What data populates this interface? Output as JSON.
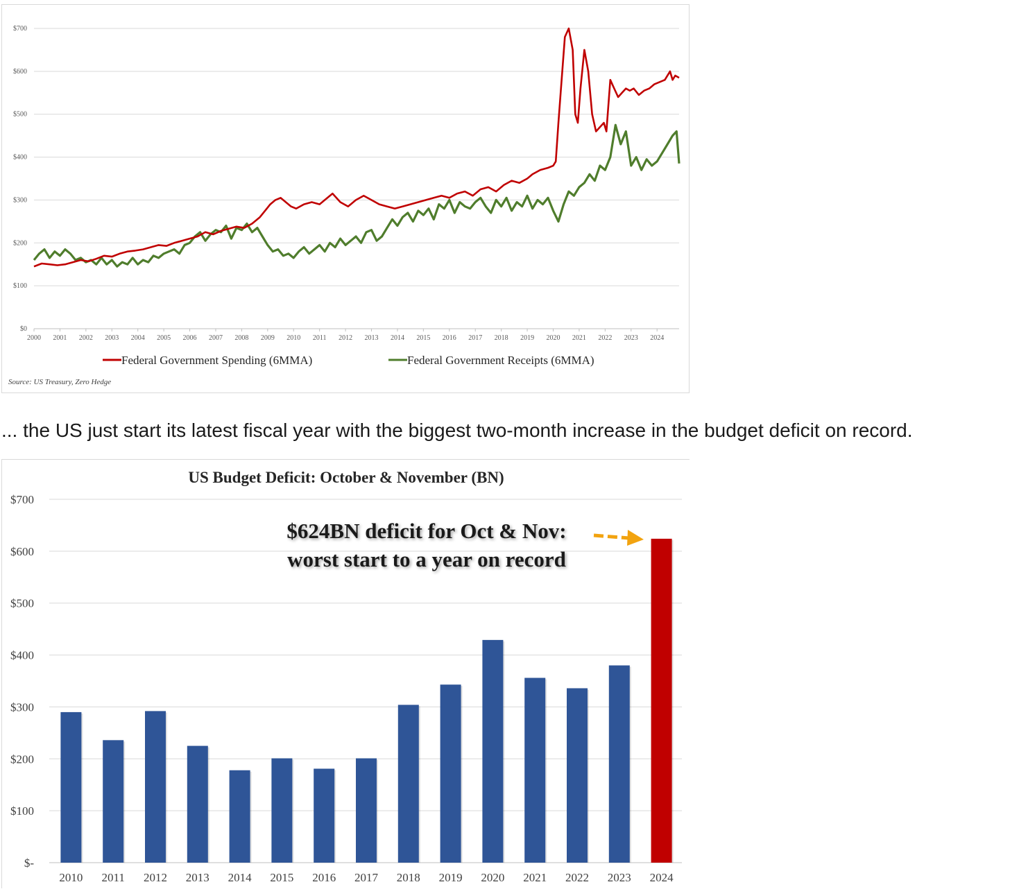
{
  "colors": {
    "spending": "#c00000",
    "receipts": "#4f7d2c",
    "bar": "#2f5597",
    "bar_highlight": "#c00000",
    "arrow": "#f2a30f"
  },
  "prose_text": "... the US just start its latest fiscal year with the biggest two-month increase in the budget deficit on record.",
  "chart_data": [
    {
      "type": "line",
      "title": "",
      "xlabel": "",
      "ylabel": "",
      "ylim": [
        0,
        700
      ],
      "xlim": [
        2000,
        2024.85
      ],
      "y_ticks": [
        0,
        100,
        200,
        300,
        400,
        500,
        600,
        700
      ],
      "y_tick_labels": [
        "$0",
        "$100",
        "$200",
        "$300",
        "$400",
        "$500",
        "$600",
        "$700"
      ],
      "x_tick_labels": [
        "2000",
        "2001",
        "2002",
        "2003",
        "2004",
        "2005",
        "2006",
        "2007",
        "2008",
        "2009",
        "2010",
        "2011",
        "2012",
        "2013",
        "2014",
        "2015",
        "2016",
        "2017",
        "2018",
        "2019",
        "2020",
        "2021",
        "2022",
        "2023",
        "2024"
      ],
      "grid": true,
      "legend": "bottom",
      "source": "Source: US Treasury, Zero Hedge",
      "series": [
        {
          "name": "Federal Government Spending (6MMA)",
          "color": "#c00000",
          "x": [
            2000.0,
            2000.3,
            2000.6,
            2000.9,
            2001.2,
            2001.5,
            2001.8,
            2002.1,
            2002.4,
            2002.7,
            2003.0,
            2003.3,
            2003.6,
            2003.9,
            2004.2,
            2004.5,
            2004.8,
            2005.1,
            2005.4,
            2005.7,
            2006.0,
            2006.3,
            2006.6,
            2006.9,
            2007.2,
            2007.5,
            2007.8,
            2008.1,
            2008.4,
            2008.7,
            2008.9,
            2009.1,
            2009.3,
            2009.5,
            2009.7,
            2009.9,
            2010.1,
            2010.4,
            2010.7,
            2011.0,
            2011.2,
            2011.5,
            2011.8,
            2012.1,
            2012.4,
            2012.7,
            2013.0,
            2013.3,
            2013.6,
            2013.9,
            2014.2,
            2014.5,
            2014.8,
            2015.1,
            2015.4,
            2015.7,
            2016.0,
            2016.3,
            2016.6,
            2016.9,
            2017.2,
            2017.5,
            2017.8,
            2018.1,
            2018.4,
            2018.7,
            2019.0,
            2019.2,
            2019.5,
            2019.8,
            2020.0,
            2020.1,
            2020.2,
            2020.3,
            2020.45,
            2020.6,
            2020.75,
            2020.85,
            2020.95,
            2021.05,
            2021.2,
            2021.35,
            2021.5,
            2021.65,
            2021.8,
            2021.95,
            2022.05,
            2022.2,
            2022.35,
            2022.5,
            2022.65,
            2022.8,
            2022.95,
            2023.1,
            2023.3,
            2023.5,
            2023.7,
            2023.9,
            2024.1,
            2024.3,
            2024.5,
            2024.6,
            2024.7,
            2024.85
          ],
          "values": [
            145,
            152,
            150,
            148,
            150,
            155,
            160,
            157,
            163,
            170,
            168,
            175,
            180,
            182,
            185,
            190,
            195,
            193,
            200,
            205,
            210,
            215,
            225,
            220,
            228,
            233,
            238,
            235,
            245,
            260,
            275,
            290,
            300,
            305,
            295,
            285,
            280,
            290,
            295,
            290,
            300,
            315,
            295,
            285,
            300,
            310,
            300,
            290,
            285,
            280,
            285,
            290,
            295,
            300,
            305,
            310,
            305,
            315,
            320,
            310,
            325,
            330,
            320,
            335,
            345,
            340,
            350,
            360,
            370,
            375,
            380,
            390,
            480,
            560,
            680,
            700,
            650,
            500,
            480,
            560,
            650,
            600,
            500,
            460,
            470,
            480,
            460,
            580,
            560,
            540,
            550,
            560,
            555,
            560,
            545,
            555,
            560,
            570,
            575,
            580,
            600,
            580,
            590,
            585
          ]
        },
        {
          "name": "Federal Government Receipts (6MMA)",
          "color": "#4f7d2c",
          "x": [
            2000.0,
            2000.2,
            2000.4,
            2000.6,
            2000.8,
            2001.0,
            2001.2,
            2001.4,
            2001.6,
            2001.8,
            2002.0,
            2002.2,
            2002.4,
            2002.6,
            2002.8,
            2003.0,
            2003.2,
            2003.4,
            2003.6,
            2003.8,
            2004.0,
            2004.2,
            2004.4,
            2004.6,
            2004.8,
            2005.0,
            2005.2,
            2005.4,
            2005.6,
            2005.8,
            2006.0,
            2006.2,
            2006.4,
            2006.6,
            2006.8,
            2007.0,
            2007.2,
            2007.4,
            2007.6,
            2007.8,
            2008.0,
            2008.2,
            2008.4,
            2008.6,
            2008.8,
            2009.0,
            2009.2,
            2009.4,
            2009.6,
            2009.8,
            2010.0,
            2010.2,
            2010.4,
            2010.6,
            2010.8,
            2011.0,
            2011.2,
            2011.4,
            2011.6,
            2011.8,
            2012.0,
            2012.2,
            2012.4,
            2012.6,
            2012.8,
            2013.0,
            2013.2,
            2013.4,
            2013.6,
            2013.8,
            2014.0,
            2014.2,
            2014.4,
            2014.6,
            2014.8,
            2015.0,
            2015.2,
            2015.4,
            2015.6,
            2015.8,
            2016.0,
            2016.2,
            2016.4,
            2016.6,
            2016.8,
            2017.0,
            2017.2,
            2017.4,
            2017.6,
            2017.8,
            2018.0,
            2018.2,
            2018.4,
            2018.6,
            2018.8,
            2019.0,
            2019.2,
            2019.4,
            2019.6,
            2019.8,
            2020.0,
            2020.2,
            2020.4,
            2020.6,
            2020.8,
            2021.0,
            2021.2,
            2021.4,
            2021.6,
            2021.8,
            2022.0,
            2022.2,
            2022.4,
            2022.6,
            2022.8,
            2023.0,
            2023.2,
            2023.4,
            2023.6,
            2023.8,
            2024.0,
            2024.2,
            2024.4,
            2024.6,
            2024.75,
            2024.85
          ],
          "values": [
            160,
            175,
            185,
            165,
            180,
            170,
            185,
            175,
            160,
            165,
            155,
            160,
            150,
            165,
            150,
            160,
            145,
            155,
            150,
            165,
            150,
            160,
            155,
            170,
            165,
            175,
            180,
            185,
            175,
            195,
            200,
            215,
            225,
            205,
            220,
            230,
            225,
            240,
            210,
            235,
            230,
            245,
            225,
            235,
            215,
            195,
            180,
            185,
            170,
            175,
            165,
            180,
            190,
            175,
            185,
            195,
            180,
            200,
            190,
            210,
            195,
            205,
            215,
            200,
            225,
            230,
            205,
            215,
            235,
            255,
            240,
            260,
            270,
            250,
            275,
            265,
            280,
            255,
            290,
            280,
            300,
            270,
            295,
            285,
            280,
            295,
            305,
            285,
            270,
            300,
            285,
            305,
            275,
            295,
            285,
            310,
            280,
            300,
            290,
            305,
            275,
            250,
            290,
            320,
            310,
            330,
            340,
            360,
            345,
            380,
            370,
            400,
            475,
            430,
            460,
            380,
            400,
            370,
            395,
            380,
            390,
            410,
            430,
            450,
            460,
            385
          ]
        }
      ]
    },
    {
      "type": "bar",
      "title": "US Budget Deficit: October & November (BN)",
      "xlabel": "",
      "ylabel": "",
      "ylim": [
        0,
        700
      ],
      "y_ticks": [
        0,
        100,
        200,
        300,
        400,
        500,
        600,
        700
      ],
      "y_tick_labels": [
        "$-",
        "$100",
        "$200",
        "$300",
        "$400",
        "$500",
        "$600",
        "$700"
      ],
      "grid": true,
      "categories": [
        "2010",
        "2011",
        "2012",
        "2013",
        "2014",
        "2015",
        "2016",
        "2017",
        "2018",
        "2019",
        "2020",
        "2021",
        "2022",
        "2023",
        "2024"
      ],
      "values": [
        290,
        236,
        292,
        225,
        178,
        201,
        181,
        201,
        304,
        343,
        429,
        356,
        336,
        380,
        624
      ],
      "highlight_index": 14,
      "annotation_lines": [
        "$624BN deficit for Oct & Nov:",
        "worst start to a year on record"
      ]
    }
  ]
}
